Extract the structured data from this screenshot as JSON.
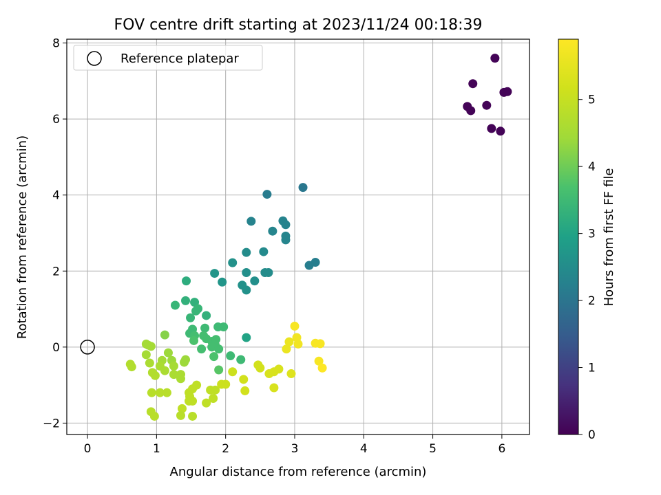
{
  "chart_data": {
    "type": "scatter",
    "title": "FOV centre drift starting at 2023/11/24 00:18:39",
    "xlabel": "Angular distance from reference (arcmin)",
    "ylabel": "Rotation from reference (arcmin)",
    "xlim": [
      -0.3,
      6.4
    ],
    "ylim": [
      -2.3,
      8.1
    ],
    "xticks": [
      0,
      1,
      2,
      3,
      4,
      5,
      6
    ],
    "yticks": [
      -2,
      0,
      2,
      4,
      6,
      8
    ],
    "grid": true,
    "legend": {
      "placement": "top-left",
      "entries": [
        "Reference platepar"
      ]
    },
    "reference_point": {
      "x": 0,
      "y": 0,
      "label": "Reference platepar"
    },
    "colorbar": {
      "label": "Hours from first FF file",
      "colormap": "viridis",
      "range": [
        0,
        5.9
      ],
      "ticks": [
        0,
        1,
        2,
        3,
        4,
        5
      ]
    },
    "points": [
      {
        "x": 5.9,
        "y": 7.6,
        "h": 0.05
      },
      {
        "x": 6.03,
        "y": 6.7,
        "h": 0.05
      },
      {
        "x": 6.08,
        "y": 6.72,
        "h": 0.05
      },
      {
        "x": 5.58,
        "y": 6.93,
        "h": 0.05
      },
      {
        "x": 5.78,
        "y": 6.36,
        "h": 0.05
      },
      {
        "x": 5.5,
        "y": 6.33,
        "h": 0.05
      },
      {
        "x": 5.55,
        "y": 6.22,
        "h": 0.05
      },
      {
        "x": 5.85,
        "y": 5.75,
        "h": 0.05
      },
      {
        "x": 5.98,
        "y": 5.68,
        "h": 0.05
      },
      {
        "x": 3.12,
        "y": 4.2,
        "h": 2.05
      },
      {
        "x": 2.6,
        "y": 4.02,
        "h": 2.15
      },
      {
        "x": 2.37,
        "y": 3.31,
        "h": 2.3
      },
      {
        "x": 2.83,
        "y": 3.32,
        "h": 2.3
      },
      {
        "x": 2.87,
        "y": 3.22,
        "h": 2.3
      },
      {
        "x": 2.68,
        "y": 3.05,
        "h": 2.35
      },
      {
        "x": 2.87,
        "y": 2.92,
        "h": 2.35
      },
      {
        "x": 2.87,
        "y": 2.82,
        "h": 2.35
      },
      {
        "x": 3.3,
        "y": 2.23,
        "h": 2.2
      },
      {
        "x": 3.21,
        "y": 2.15,
        "h": 2.2
      },
      {
        "x": 2.3,
        "y": 2.49,
        "h": 2.5
      },
      {
        "x": 2.55,
        "y": 2.51,
        "h": 2.45
      },
      {
        "x": 2.1,
        "y": 2.22,
        "h": 2.6
      },
      {
        "x": 2.57,
        "y": 1.96,
        "h": 2.5
      },
      {
        "x": 2.62,
        "y": 1.96,
        "h": 2.5
      },
      {
        "x": 2.3,
        "y": 1.96,
        "h": 2.55
      },
      {
        "x": 1.84,
        "y": 1.94,
        "h": 2.7
      },
      {
        "x": 1.95,
        "y": 1.71,
        "h": 2.7
      },
      {
        "x": 2.42,
        "y": 1.74,
        "h": 2.55
      },
      {
        "x": 2.24,
        "y": 1.63,
        "h": 2.6
      },
      {
        "x": 2.3,
        "y": 1.5,
        "h": 2.6
      },
      {
        "x": 1.43,
        "y": 1.74,
        "h": 3.2
      },
      {
        "x": 1.42,
        "y": 1.22,
        "h": 3.3
      },
      {
        "x": 1.55,
        "y": 1.18,
        "h": 3.3
      },
      {
        "x": 1.27,
        "y": 1.1,
        "h": 3.4
      },
      {
        "x": 1.6,
        "y": 1.01,
        "h": 3.4
      },
      {
        "x": 1.57,
        "y": 0.95,
        "h": 3.4
      },
      {
        "x": 1.72,
        "y": 0.83,
        "h": 3.3
      },
      {
        "x": 1.49,
        "y": 0.77,
        "h": 3.4
      },
      {
        "x": 1.89,
        "y": 0.53,
        "h": 3.5
      },
      {
        "x": 1.97,
        "y": 0.53,
        "h": 3.5
      },
      {
        "x": 1.52,
        "y": 0.47,
        "h": 3.5
      },
      {
        "x": 1.7,
        "y": 0.5,
        "h": 3.5
      },
      {
        "x": 1.48,
        "y": 0.36,
        "h": 3.5
      },
      {
        "x": 1.55,
        "y": 0.3,
        "h": 3.6
      },
      {
        "x": 1.68,
        "y": 0.3,
        "h": 3.6
      },
      {
        "x": 1.72,
        "y": 0.22,
        "h": 3.6
      },
      {
        "x": 1.8,
        "y": 0.15,
        "h": 3.6
      },
      {
        "x": 1.86,
        "y": 0.2,
        "h": 3.6
      },
      {
        "x": 1.54,
        "y": 0.17,
        "h": 3.7
      },
      {
        "x": 2.3,
        "y": 0.25,
        "h": 3.0
      },
      {
        "x": 1.85,
        "y": 0.05,
        "h": 3.6
      },
      {
        "x": 1.8,
        "y": 0.0,
        "h": 3.6
      },
      {
        "x": 1.9,
        "y": -0.05,
        "h": 3.6
      },
      {
        "x": 1.65,
        "y": -0.05,
        "h": 3.6
      },
      {
        "x": 1.83,
        "y": -0.25,
        "h": 3.7
      },
      {
        "x": 2.07,
        "y": -0.23,
        "h": 3.5
      },
      {
        "x": 2.22,
        "y": -0.33,
        "h": 3.5
      },
      {
        "x": 1.9,
        "y": -0.6,
        "h": 3.8
      },
      {
        "x": 1.12,
        "y": 0.32,
        "h": 4.2
      },
      {
        "x": 0.85,
        "y": 0.08,
        "h": 4.5
      },
      {
        "x": 0.88,
        "y": 0.05,
        "h": 4.5
      },
      {
        "x": 0.92,
        "y": 0.02,
        "h": 4.5
      },
      {
        "x": 0.85,
        "y": -0.2,
        "h": 4.5
      },
      {
        "x": 1.17,
        "y": -0.15,
        "h": 4.4
      },
      {
        "x": 1.08,
        "y": -0.35,
        "h": 4.5
      },
      {
        "x": 1.22,
        "y": -0.35,
        "h": 4.4
      },
      {
        "x": 1.42,
        "y": -0.33,
        "h": 4.4
      },
      {
        "x": 1.4,
        "y": -0.4,
        "h": 4.4
      },
      {
        "x": 0.9,
        "y": -0.42,
        "h": 4.6
      },
      {
        "x": 1.05,
        "y": -0.5,
        "h": 4.6
      },
      {
        "x": 1.25,
        "y": -0.5,
        "h": 4.5
      },
      {
        "x": 0.62,
        "y": -0.45,
        "h": 4.7
      },
      {
        "x": 0.64,
        "y": -0.52,
        "h": 4.7
      },
      {
        "x": 1.12,
        "y": -0.62,
        "h": 4.6
      },
      {
        "x": 0.94,
        "y": -0.67,
        "h": 4.7
      },
      {
        "x": 0.98,
        "y": -0.75,
        "h": 4.7
      },
      {
        "x": 1.25,
        "y": -0.72,
        "h": 4.6
      },
      {
        "x": 1.35,
        "y": -0.72,
        "h": 4.6
      },
      {
        "x": 1.35,
        "y": -0.83,
        "h": 4.6
      },
      {
        "x": 0.93,
        "y": -1.2,
        "h": 4.8
      },
      {
        "x": 1.05,
        "y": -1.2,
        "h": 4.8
      },
      {
        "x": 1.15,
        "y": -1.2,
        "h": 4.8
      },
      {
        "x": 1.58,
        "y": -1.0,
        "h": 4.9
      },
      {
        "x": 1.52,
        "y": -1.1,
        "h": 4.9
      },
      {
        "x": 1.47,
        "y": -1.2,
        "h": 4.9
      },
      {
        "x": 1.48,
        "y": -1.3,
        "h": 4.9
      },
      {
        "x": 1.78,
        "y": -1.13,
        "h": 4.9
      },
      {
        "x": 1.85,
        "y": -1.13,
        "h": 4.9
      },
      {
        "x": 1.82,
        "y": -1.35,
        "h": 4.9
      },
      {
        "x": 1.72,
        "y": -1.47,
        "h": 4.9
      },
      {
        "x": 1.47,
        "y": -1.42,
        "h": 4.9
      },
      {
        "x": 1.52,
        "y": -1.42,
        "h": 4.9
      },
      {
        "x": 1.37,
        "y": -1.62,
        "h": 4.9
      },
      {
        "x": 0.92,
        "y": -1.7,
        "h": 4.8
      },
      {
        "x": 0.97,
        "y": -1.82,
        "h": 4.8
      },
      {
        "x": 1.35,
        "y": -1.8,
        "h": 4.8
      },
      {
        "x": 1.52,
        "y": -1.82,
        "h": 4.8
      },
      {
        "x": 1.94,
        "y": -0.98,
        "h": 5.1
      },
      {
        "x": 2.0,
        "y": -0.98,
        "h": 5.1
      },
      {
        "x": 2.1,
        "y": -0.65,
        "h": 5.1
      },
      {
        "x": 2.26,
        "y": -0.85,
        "h": 5.2
      },
      {
        "x": 2.28,
        "y": -1.15,
        "h": 5.2
      },
      {
        "x": 2.47,
        "y": -0.47,
        "h": 5.2
      },
      {
        "x": 2.5,
        "y": -0.55,
        "h": 5.2
      },
      {
        "x": 2.63,
        "y": -0.7,
        "h": 5.3
      },
      {
        "x": 2.7,
        "y": -0.65,
        "h": 5.3
      },
      {
        "x": 2.77,
        "y": -0.58,
        "h": 5.3
      },
      {
        "x": 2.7,
        "y": -1.07,
        "h": 5.3
      },
      {
        "x": 2.95,
        "y": -0.7,
        "h": 5.4
      },
      {
        "x": 3.0,
        "y": 0.55,
        "h": 5.8
      },
      {
        "x": 3.03,
        "y": 0.25,
        "h": 5.7
      },
      {
        "x": 2.92,
        "y": 0.14,
        "h": 5.6
      },
      {
        "x": 3.05,
        "y": 0.08,
        "h": 5.7
      },
      {
        "x": 2.88,
        "y": -0.05,
        "h": 5.6
      },
      {
        "x": 3.3,
        "y": 0.1,
        "h": 5.8
      },
      {
        "x": 3.37,
        "y": 0.09,
        "h": 5.8
      },
      {
        "x": 3.35,
        "y": -0.37,
        "h": 5.8
      },
      {
        "x": 3.4,
        "y": -0.55,
        "h": 5.9
      }
    ]
  }
}
